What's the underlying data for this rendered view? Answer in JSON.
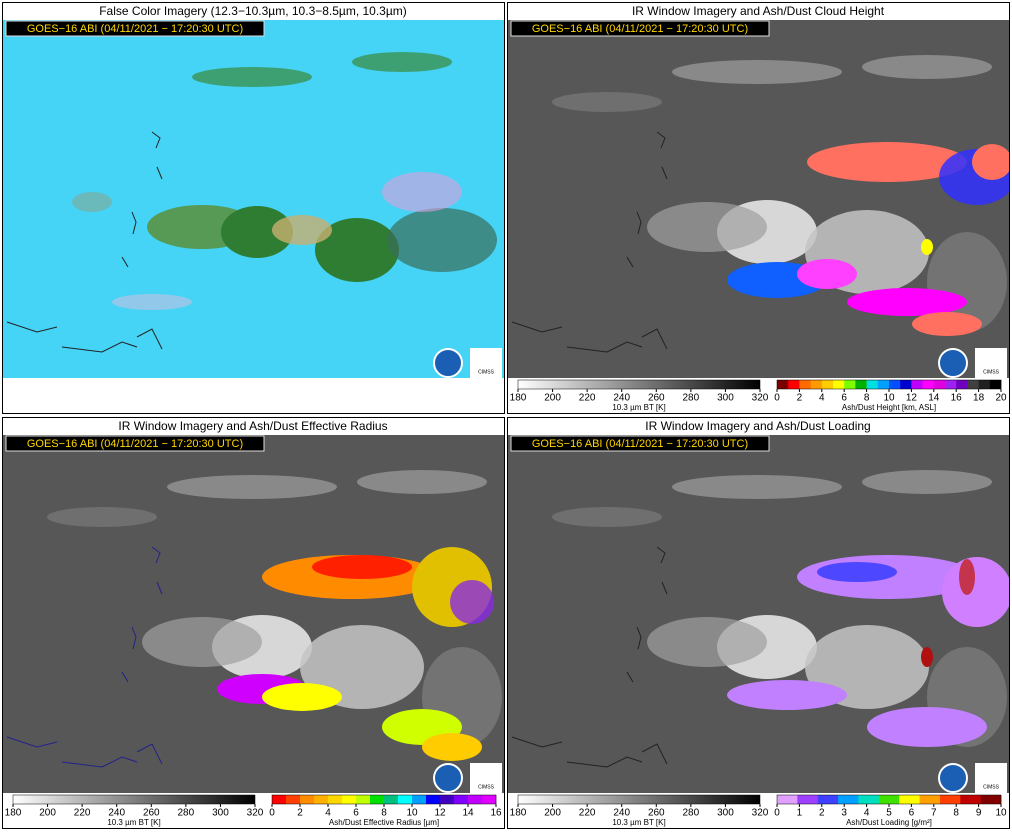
{
  "panels": [
    {
      "title": "False Color Imagery (12.3−10.3µm, 10.3−8.5µm, 10.3µm)",
      "stamp": "GOES−16 ABI (04/11/2021 − 17:20:30 UTC)",
      "logo": "CIMSS",
      "colorbars": []
    },
    {
      "title": "IR Window Imagery and Ash/Dust Cloud Height",
      "stamp": "GOES−16 ABI (04/11/2021 − 17:20:30 UTC)",
      "logo": "CIMSS",
      "colorbars": [
        {
          "ticks": [
            180,
            200,
            220,
            240,
            260,
            280,
            300,
            320
          ],
          "label": "10.3 µm BT [K]",
          "colors": [
            "#ffffff",
            "#000000"
          ]
        },
        {
          "ticks": [
            0,
            2,
            4,
            6,
            8,
            10,
            12,
            14,
            16,
            18,
            20
          ],
          "label": "Ash/Dust Height [km, ASL]",
          "colors": [
            "#7a0000",
            "#ff0000",
            "#ff6a00",
            "#ff9900",
            "#ffcc00",
            "#ffff00",
            "#7cfc00",
            "#00b000",
            "#00e0e0",
            "#00a0ff",
            "#0050ff",
            "#0000d0",
            "#c000ff",
            "#ff00ff",
            "#e000e0",
            "#a020f0",
            "#7000c0",
            "#404040",
            "#202020",
            "#000000"
          ]
        }
      ]
    },
    {
      "title": "IR Window Imagery and Ash/Dust Effective Radius",
      "stamp": "GOES−16 ABI (04/11/2021 − 17:20:30 UTC)",
      "logo": "CIMSS",
      "colorbars": [
        {
          "ticks": [
            180,
            200,
            220,
            240,
            260,
            280,
            300,
            320
          ],
          "label": "10.3 µm BT [K]",
          "colors": [
            "#ffffff",
            "#000000"
          ]
        },
        {
          "ticks": [
            0,
            2,
            4,
            6,
            8,
            10,
            12,
            14,
            16
          ],
          "label": "Ash/Dust Effective Radius [µm]",
          "colors": [
            "#ff0000",
            "#ff4000",
            "#ff8c00",
            "#ffb000",
            "#ffd700",
            "#ffff00",
            "#c0ff00",
            "#00e000",
            "#00c080",
            "#00ffff",
            "#00a0ff",
            "#0000ff",
            "#4000c0",
            "#8000ff",
            "#c000ff",
            "#e000ff"
          ]
        }
      ]
    },
    {
      "title": "IR Window Imagery and Ash/Dust Loading",
      "stamp": "GOES−16 ABI (04/11/2021 − 17:20:30 UTC)",
      "logo": "CIMSS",
      "colorbars": [
        {
          "ticks": [
            180,
            200,
            220,
            240,
            260,
            280,
            300,
            320
          ],
          "label": "10.3 µm BT [K]",
          "colors": [
            "#ffffff",
            "#000000"
          ]
        },
        {
          "ticks": [
            0,
            1,
            2,
            3,
            4,
            5,
            6,
            7,
            8,
            9,
            10
          ],
          "label": "Ash/Dust Loading [g/m²]",
          "colors": [
            "#e0a0ff",
            "#a040ff",
            "#4040ff",
            "#00a0ff",
            "#00e0c0",
            "#40e000",
            "#ffff00",
            "#ffa000",
            "#ff4000",
            "#c00000",
            "#800000"
          ]
        }
      ]
    }
  ]
}
